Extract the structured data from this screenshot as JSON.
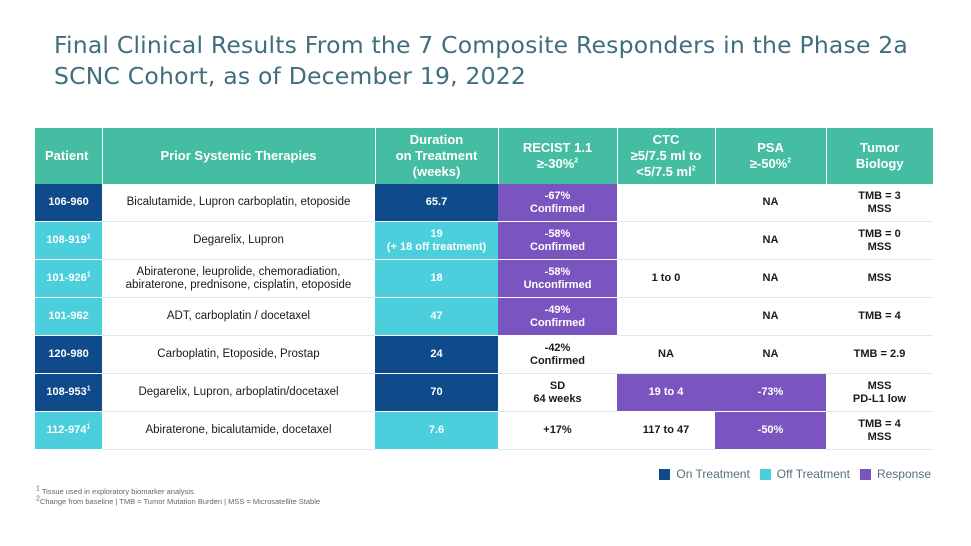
{
  "title_line1": "Final Clinical Results From the 7 Composite Responders in the Phase 2a",
  "title_line2": "SCNC Cohort, as of December 19, 2022",
  "headers": {
    "patient": "Patient",
    "prior": "Prior Systemic Therapies",
    "duration1": "Duration",
    "duration2": "on Treatment",
    "duration3": "(weeks)",
    "recist1": "RECIST 1.1",
    "recist2": "≥-30%",
    "recist_sup": "2",
    "ctc1": "CTC",
    "ctc2": "≥5/7.5 ml to",
    "ctc3": "<5/7.5 ml",
    "ctc_sup": "2",
    "psa1": "PSA",
    "psa2": "≥-50%",
    "psa_sup": "2",
    "tumor1": "Tumor",
    "tumor2": "Biology"
  },
  "colors": {
    "header_bg": "#45bda3",
    "on_treatment": "#0f4a8a",
    "off_treatment": "#4ccfdc",
    "response": "#7b55bf",
    "title": "#3f6e7c"
  },
  "rows": [
    {
      "patient": "106-960",
      "patient_sup": "",
      "patient_status": "on",
      "prior": "Bicalutamide, Lupron carboplatin, etoposide",
      "prior2": "",
      "duration": "65.7",
      "duration2": "",
      "duration_status": "on",
      "recist": "-67%",
      "recist2": "Confirmed",
      "recist_resp": true,
      "ctc": "",
      "ctc_resp": false,
      "psa": "NA",
      "psa_resp": false,
      "tumor": "TMB = 3",
      "tumor2": "MSS"
    },
    {
      "patient": "108-919",
      "patient_sup": "1",
      "patient_status": "off",
      "prior": "Degarelix, Lupron",
      "prior2": "",
      "duration": "19",
      "duration2": "(+ 18 off treatment)",
      "duration_status": "off",
      "recist": "-58%",
      "recist2": "Confirmed",
      "recist_resp": true,
      "ctc": "",
      "ctc_resp": false,
      "psa": "NA",
      "psa_resp": false,
      "tumor": "TMB = 0",
      "tumor2": "MSS"
    },
    {
      "patient": "101-926",
      "patient_sup": "1",
      "patient_status": "off",
      "prior": "Abiraterone, leuprolide, chemoradiation,",
      "prior2": "abiraterone, prednisone, cisplatin, etoposide",
      "duration": "18",
      "duration2": "",
      "duration_status": "off",
      "recist": "-58%",
      "recist2": "Unconfirmed",
      "recist_resp": true,
      "ctc": "1 to 0",
      "ctc_resp": false,
      "psa": "NA",
      "psa_resp": false,
      "tumor": "MSS",
      "tumor2": ""
    },
    {
      "patient": "101-962",
      "patient_sup": "",
      "patient_status": "off",
      "prior": "ADT, carboplatin / docetaxel",
      "prior2": "",
      "duration": "47",
      "duration2": "",
      "duration_status": "off",
      "recist": "-49%",
      "recist2": "Confirmed",
      "recist_resp": true,
      "ctc": "",
      "ctc_resp": false,
      "psa": "NA",
      "psa_resp": false,
      "tumor": "TMB = 4",
      "tumor2": ""
    },
    {
      "patient": "120-980",
      "patient_sup": "",
      "patient_status": "on",
      "prior": "Carboplatin, Etoposide, Prostap",
      "prior2": "",
      "duration": "24",
      "duration2": "",
      "duration_status": "on",
      "recist": "-42%",
      "recist2": "Confirmed",
      "recist_resp": false,
      "ctc": "NA",
      "ctc_resp": false,
      "psa": "NA",
      "psa_resp": false,
      "tumor": "TMB = 2.9",
      "tumor2": ""
    },
    {
      "patient": "108-953",
      "patient_sup": "1",
      "patient_status": "on",
      "prior": "Degarelix, Lupron, arboplatin/docetaxel",
      "prior2": "",
      "duration": "70",
      "duration2": "",
      "duration_status": "on",
      "recist": "SD",
      "recist2": "64 weeks",
      "recist_resp": false,
      "ctc": "19 to 4",
      "ctc_resp": true,
      "psa": "-73%",
      "psa_resp": true,
      "tumor": "MSS",
      "tumor2": "PD-L1 low"
    },
    {
      "patient": "112-974",
      "patient_sup": "1",
      "patient_status": "off",
      "prior": "Abiraterone, bicalutamide, docetaxel",
      "prior2": "",
      "duration": "7.6",
      "duration2": "",
      "duration_status": "off",
      "recist": "+17%",
      "recist2": "",
      "recist_resp": false,
      "ctc": "117 to 47",
      "ctc_resp": false,
      "psa": "-50%",
      "psa_resp": true,
      "tumor": "TMB = 4",
      "tumor2": "MSS"
    }
  ],
  "legend": [
    {
      "label": "On Treatment",
      "color": "#0f4a8a"
    },
    {
      "label": "Off Treatment",
      "color": "#4ccfdc"
    },
    {
      "label": "Response",
      "color": "#7b55bf"
    }
  ],
  "footnote1_sup": "1",
  "footnote1": " Tissue used in exploratory biomarker analysis",
  "footnote2_sup": "2",
  "footnote2": "Change from baseline | TMB = Tumor Mutation Burden | MSS = Microsatellite Stable"
}
